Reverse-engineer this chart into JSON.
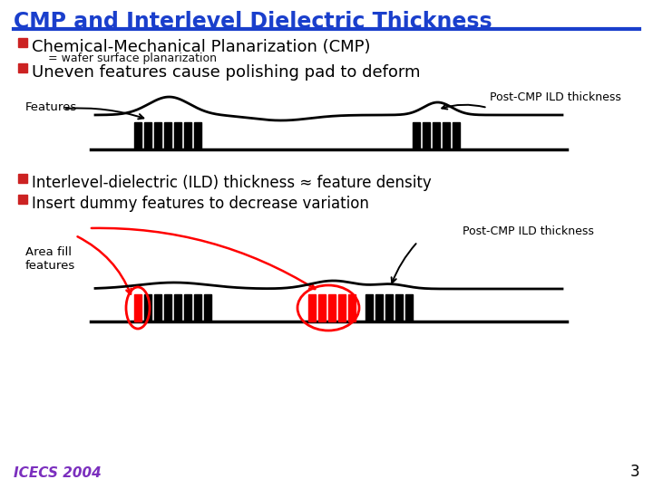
{
  "title": "CMP and Interlevel Dielectric Thickness",
  "title_color": "#1a3fcc",
  "title_fontsize": 17,
  "bg_color": "#ffffff",
  "bullet_color": "#cc2222",
  "bullet1_text": "Chemical-Mechanical Planarization (CMP)",
  "bullet1_sub": "= wafer surface planarization",
  "bullet2_text": "Uneven features cause polishing pad to deform",
  "bullet3_text": "Interlevel-dielectric (ILD) thickness ≈ feature density",
  "bullet4_text": "Insert dummy features to decrease variation",
  "diagram1_label_left": "Features",
  "diagram1_label_right": "Post-CMP ILD thickness",
  "diagram2_label_left": "Area fill\nfeatures",
  "diagram2_label_right": "Post-CMP ILD thickness",
  "footer_text": "ICECS 2004",
  "footer_color": "#7b2fbe",
  "page_number": "3"
}
